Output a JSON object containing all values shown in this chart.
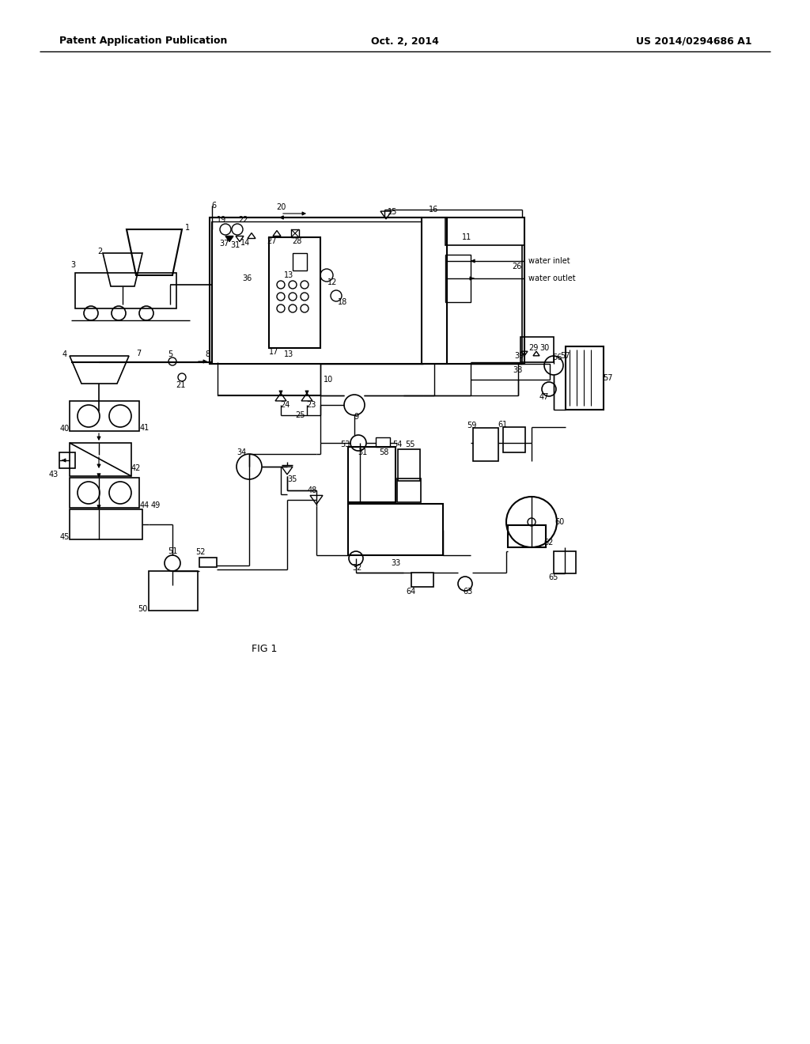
{
  "bg_color": "#ffffff",
  "header_left": "Patent Application Publication",
  "header_center": "Oct. 2, 2014",
  "header_right": "US 2014/0294686 A1",
  "fig_label": "FIG 1",
  "water_inlet_text": "water inlet",
  "water_outlet_text": "water outlet"
}
